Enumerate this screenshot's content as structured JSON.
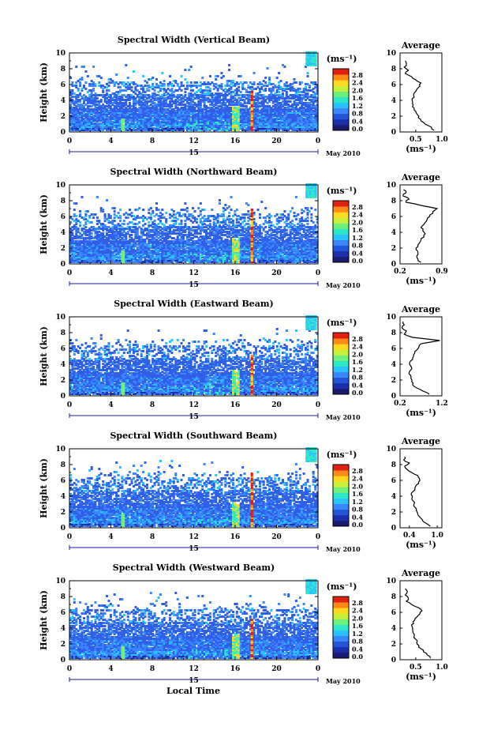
{
  "figure": {
    "xlabel": "Local Time",
    "date_label": "May 2010",
    "day_label": "15",
    "colorbar_unit": "(ms⁻¹)",
    "colorbar_ticks": [
      "0.0",
      "0.4",
      "0.8",
      "1.2",
      "1.6",
      "2.0",
      "2.4",
      "2.8"
    ],
    "colorbar_colors": [
      "#1a1a6e",
      "#1c2fa8",
      "#2255d8",
      "#3a86ff",
      "#2ac2ff",
      "#2ee6c8",
      "#6ef07a",
      "#c8f03a",
      "#ffd820",
      "#ff8a18",
      "#e02010"
    ],
    "data_colors": {
      "deep": "#1c2fa8",
      "blue": "#2f5fe8",
      "mid": "#3a86ff",
      "cyan": "#2ac2ff",
      "teal": "#2ee6c8",
      "green": "#6ef07a",
      "yellow": "#ffd820",
      "orange": "#ff8a18",
      "red": "#e02010"
    },
    "profile_title": "Average"
  },
  "chart_data": [
    {
      "type": "heatmap",
      "title": "Spectral Width (Vertical Beam)",
      "ylabel": "Height (km)",
      "xlabel": "Local Time",
      "x_ticks": [
        "0",
        "4",
        "8",
        "12",
        "16",
        "20",
        "0"
      ],
      "y_ticks": [
        "0",
        "2",
        "4",
        "6",
        "8",
        "10"
      ],
      "xlim": [
        0,
        24
      ],
      "ylim": [
        0,
        10
      ],
      "colorbar_range": [
        0.0,
        2.8
      ],
      "profile": {
        "title": "Average",
        "xlabel": "(ms⁻¹)",
        "x_ticks": [
          "0.5",
          "1.0"
        ],
        "xlim": [
          0.2,
          1.0
        ],
        "ylim": [
          0,
          10
        ],
        "points": [
          [
            0.85,
            0.2
          ],
          [
            0.8,
            0.6
          ],
          [
            0.68,
            1.0
          ],
          [
            0.6,
            1.4
          ],
          [
            0.55,
            1.8
          ],
          [
            0.53,
            2.2
          ],
          [
            0.5,
            2.6
          ],
          [
            0.47,
            3.0
          ],
          [
            0.45,
            3.4
          ],
          [
            0.44,
            3.8
          ],
          [
            0.43,
            4.2
          ],
          [
            0.46,
            4.6
          ],
          [
            0.48,
            5.0
          ],
          [
            0.52,
            5.4
          ],
          [
            0.58,
            5.8
          ],
          [
            0.6,
            6.2
          ],
          [
            0.5,
            6.6
          ],
          [
            0.42,
            7.0
          ],
          [
            0.3,
            7.4
          ],
          [
            0.36,
            7.8
          ],
          [
            0.28,
            8.2
          ],
          [
            0.32,
            8.6
          ],
          [
            0.3,
            9.0
          ]
        ]
      }
    },
    {
      "type": "heatmap",
      "title": "Spectral Width (Northward Beam)",
      "ylabel": "Height (km)",
      "xlabel": "Local Time",
      "x_ticks": [
        "0",
        "4",
        "8",
        "12",
        "16",
        "20",
        "0"
      ],
      "y_ticks": [
        "0",
        "2",
        "4",
        "6",
        "8",
        "10"
      ],
      "xlim": [
        0,
        24
      ],
      "ylim": [
        0,
        10
      ],
      "colorbar_range": [
        0.0,
        2.8
      ],
      "profile": {
        "title": "Average",
        "xlabel": "(ms⁻¹)",
        "x_ticks": [
          "0.2",
          "0.9"
        ],
        "xlim": [
          0.2,
          0.9
        ],
        "ylim": [
          0,
          10
        ],
        "points": [
          [
            0.55,
            0.2
          ],
          [
            0.5,
            0.6
          ],
          [
            0.48,
            1.0
          ],
          [
            0.5,
            1.4
          ],
          [
            0.47,
            1.8
          ],
          [
            0.5,
            2.2
          ],
          [
            0.52,
            2.6
          ],
          [
            0.55,
            3.0
          ],
          [
            0.6,
            3.4
          ],
          [
            0.62,
            3.8
          ],
          [
            0.58,
            4.2
          ],
          [
            0.55,
            4.6
          ],
          [
            0.6,
            5.0
          ],
          [
            0.64,
            5.4
          ],
          [
            0.66,
            5.8
          ],
          [
            0.7,
            6.2
          ],
          [
            0.75,
            6.6
          ],
          [
            0.82,
            7.0
          ],
          [
            0.55,
            7.4
          ],
          [
            0.3,
            7.8
          ],
          [
            0.35,
            8.2
          ],
          [
            0.25,
            8.6
          ],
          [
            0.3,
            9.0
          ],
          [
            0.26,
            9.4
          ]
        ]
      }
    },
    {
      "type": "heatmap",
      "title": "Spectral Width (Eastward Beam)",
      "ylabel": "Height (km)",
      "xlabel": "Local Time",
      "x_ticks": [
        "0",
        "4",
        "8",
        "12",
        "16",
        "20",
        "0"
      ],
      "y_ticks": [
        "0",
        "2",
        "4",
        "6",
        "8",
        "10"
      ],
      "xlim": [
        0,
        24
      ],
      "ylim": [
        0,
        10
      ],
      "colorbar_range": [
        0.0,
        2.8
      ],
      "profile": {
        "title": "Average",
        "xlabel": "(ms⁻¹)",
        "x_ticks": [
          "0.2",
          "1.2"
        ],
        "xlim": [
          0.2,
          1.2
        ],
        "ylim": [
          0,
          10
        ],
        "points": [
          [
            0.9,
            0.2
          ],
          [
            0.75,
            0.6
          ],
          [
            0.6,
            1.0
          ],
          [
            0.5,
            1.4
          ],
          [
            0.48,
            1.8
          ],
          [
            0.46,
            2.2
          ],
          [
            0.45,
            2.6
          ],
          [
            0.42,
            3.0
          ],
          [
            0.48,
            3.4
          ],
          [
            0.45,
            3.8
          ],
          [
            0.43,
            4.2
          ],
          [
            0.5,
            4.6
          ],
          [
            0.52,
            5.0
          ],
          [
            0.55,
            5.4
          ],
          [
            0.6,
            5.8
          ],
          [
            0.65,
            6.2
          ],
          [
            0.7,
            6.6
          ],
          [
            1.15,
            7.0
          ],
          [
            0.5,
            7.4
          ],
          [
            0.3,
            7.8
          ],
          [
            0.35,
            8.2
          ],
          [
            0.25,
            8.6
          ],
          [
            0.3,
            9.0
          ],
          [
            0.27,
            9.4
          ]
        ]
      }
    },
    {
      "type": "heatmap",
      "title": "Spectral Width (Southward Beam)",
      "ylabel": "Height (km)",
      "xlabel": "Local Time",
      "x_ticks": [
        "0",
        "4",
        "8",
        "12",
        "16",
        "20",
        "0"
      ],
      "y_ticks": [
        "0",
        "2",
        "4",
        "6",
        "8",
        "10"
      ],
      "xlim": [
        0,
        24
      ],
      "ylim": [
        0,
        10
      ],
      "colorbar_range": [
        0.0,
        2.8
      ],
      "profile": {
        "title": "Average",
        "xlabel": "(ms⁻¹)",
        "x_ticks": [
          "0.4",
          "1.0"
        ],
        "xlim": [
          0.2,
          1.1
        ],
        "ylim": [
          0,
          10
        ],
        "points": [
          [
            0.85,
            0.2
          ],
          [
            0.75,
            0.6
          ],
          [
            0.68,
            1.0
          ],
          [
            0.62,
            1.4
          ],
          [
            0.58,
            1.8
          ],
          [
            0.55,
            2.2
          ],
          [
            0.52,
            2.6
          ],
          [
            0.5,
            3.0
          ],
          [
            0.48,
            3.4
          ],
          [
            0.46,
            3.8
          ],
          [
            0.44,
            4.2
          ],
          [
            0.48,
            4.6
          ],
          [
            0.52,
            5.0
          ],
          [
            0.55,
            5.4
          ],
          [
            0.6,
            5.8
          ],
          [
            0.62,
            6.2
          ],
          [
            0.58,
            6.6
          ],
          [
            0.45,
            7.0
          ],
          [
            0.35,
            7.4
          ],
          [
            0.3,
            7.8
          ],
          [
            0.4,
            8.2
          ],
          [
            0.28,
            8.6
          ],
          [
            0.3,
            9.0
          ]
        ]
      }
    },
    {
      "type": "heatmap",
      "title": "Spectral Width (Westward Beam)",
      "ylabel": "Height (km)",
      "xlabel": "Local Time",
      "x_ticks": [
        "0",
        "4",
        "8",
        "12",
        "16",
        "20",
        "0"
      ],
      "y_ticks": [
        "0",
        "2",
        "4",
        "6",
        "8",
        "10"
      ],
      "xlim": [
        0,
        24
      ],
      "ylim": [
        0,
        10
      ],
      "colorbar_range": [
        0.0,
        2.8
      ],
      "profile": {
        "title": "Average",
        "xlabel": "(ms⁻¹)",
        "x_ticks": [
          "0.5",
          "1.0"
        ],
        "xlim": [
          0.2,
          1.0
        ],
        "ylim": [
          0,
          10
        ],
        "points": [
          [
            0.78,
            0.2
          ],
          [
            0.72,
            0.6
          ],
          [
            0.65,
            1.0
          ],
          [
            0.6,
            1.4
          ],
          [
            0.56,
            1.8
          ],
          [
            0.52,
            2.2
          ],
          [
            0.5,
            2.6
          ],
          [
            0.47,
            3.0
          ],
          [
            0.45,
            3.4
          ],
          [
            0.44,
            3.8
          ],
          [
            0.43,
            4.2
          ],
          [
            0.46,
            4.6
          ],
          [
            0.48,
            5.0
          ],
          [
            0.52,
            5.4
          ],
          [
            0.58,
            5.8
          ],
          [
            0.62,
            6.2
          ],
          [
            0.55,
            6.6
          ],
          [
            0.42,
            7.0
          ],
          [
            0.32,
            7.4
          ],
          [
            0.36,
            7.8
          ],
          [
            0.3,
            8.2
          ],
          [
            0.34,
            8.6
          ],
          [
            0.3,
            9.0
          ]
        ]
      }
    }
  ]
}
